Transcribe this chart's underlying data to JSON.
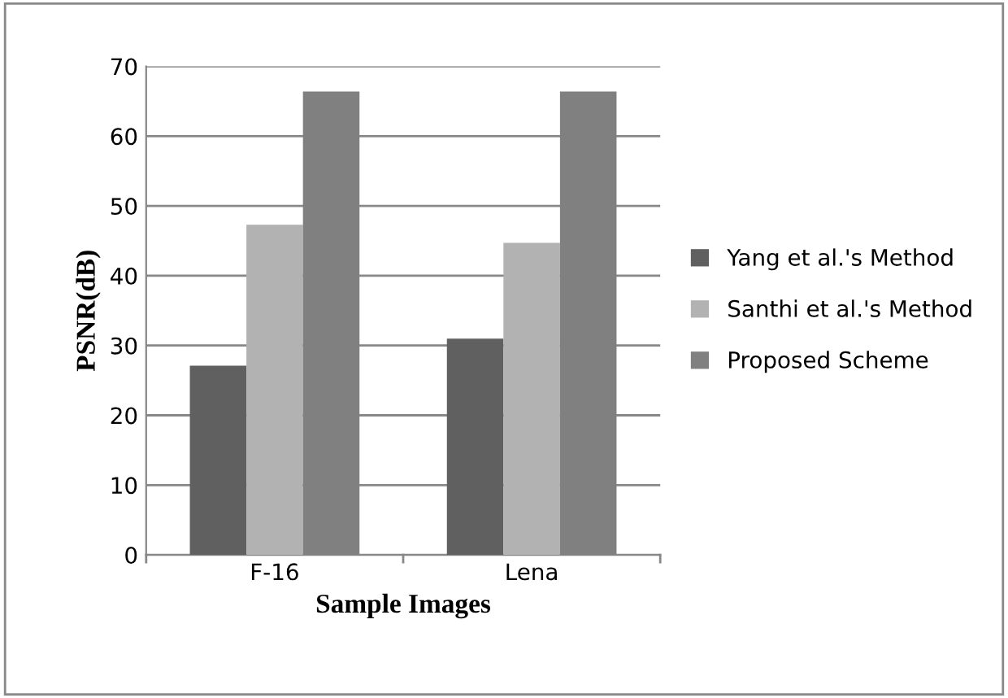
{
  "chart_data": {
    "type": "bar",
    "xlabel": "Sample Images",
    "ylabel": "PSNR(dB)",
    "categories": [
      "F-16",
      "Lena"
    ],
    "series": [
      {
        "name": "Yang et al.'s Method",
        "color": "#606060",
        "values": [
          27.1,
          31.0
        ]
      },
      {
        "name": "Santhi et al.'s Method",
        "color": "#b2b2b2",
        "values": [
          47.3,
          44.7
        ]
      },
      {
        "name": "Proposed Scheme",
        "color": "#808080",
        "values": [
          66.4,
          66.4
        ]
      }
    ],
    "ylim": [
      0,
      70
    ],
    "yticks": [
      0,
      10,
      20,
      30,
      40,
      50,
      60,
      70
    ],
    "grid": "y",
    "legend": "right"
  }
}
